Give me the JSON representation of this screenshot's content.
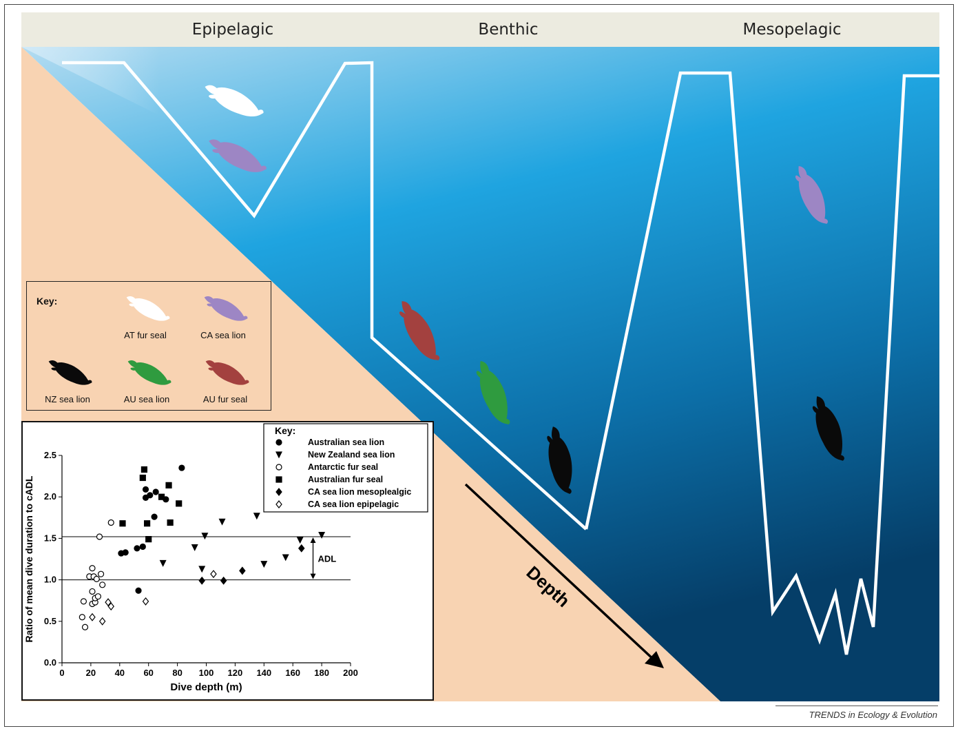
{
  "zones": {
    "epipelagic": "Epipelagic",
    "benthic": "Benthic",
    "mesopelagic": "Mesopelagic"
  },
  "depth_label": "Depth",
  "colors": {
    "header_band": "#ecebe0",
    "land": "#f8d3b2",
    "water_top": "#a9d7f0",
    "water_mid": "#1a9ddc",
    "water_deep": "#07426e",
    "dive_path": "#ffffff",
    "at_fur_seal": "#ffffff",
    "ca_sea_lion": "#9d86c4",
    "nz_sea_lion": "#0a0a0a",
    "au_sea_lion": "#2f9b3f",
    "au_fur_seal": "#a3413f"
  },
  "animal_key": {
    "title": "Key:",
    "items": [
      {
        "label": "AT fur seal",
        "icon": "seal-silhouette-icon"
      },
      {
        "label": "CA sea lion",
        "icon": "sea-lion-silhouette-icon"
      },
      {
        "label": "NZ sea lion",
        "icon": "sea-lion-silhouette-icon"
      },
      {
        "label": "AU sea lion",
        "icon": "sea-lion-silhouette-icon"
      },
      {
        "label": "AU fur seal",
        "icon": "seal-silhouette-icon"
      }
    ]
  },
  "chart_data": {
    "type": "scatter",
    "xlabel": "Dive depth (m)",
    "ylabel": "Ratio of mean dive duration to cADL",
    "xlim": [
      0,
      200
    ],
    "ylim": [
      0,
      2.5
    ],
    "xticks": [
      "0",
      "20",
      "40",
      "60",
      "80",
      "100",
      "120",
      "140",
      "160",
      "180",
      "200"
    ],
    "yticks": [
      "0.0",
      "0.5",
      "1.0",
      "1.5",
      "2.0",
      "2.5"
    ],
    "reference_lines": [
      1.0,
      1.52
    ],
    "adl_label": "ADL",
    "legend_title": "Key:",
    "legend_position": "top-right",
    "series": [
      {
        "name": "Australian sea lion",
        "marker": "circle-filled",
        "points": [
          [
            41,
            1.32
          ],
          [
            44,
            1.33
          ],
          [
            52,
            1.38
          ],
          [
            56,
            1.4
          ],
          [
            53,
            0.87
          ],
          [
            58,
            2.09
          ],
          [
            58,
            1.99
          ],
          [
            61,
            2.02
          ],
          [
            64,
            1.76
          ],
          [
            65,
            2.06
          ],
          [
            72,
            1.97
          ],
          [
            83,
            2.35
          ]
        ]
      },
      {
        "name": "New Zealand sea lion",
        "marker": "triangle-down-filled",
        "points": [
          [
            70,
            1.2
          ],
          [
            92,
            1.39
          ],
          [
            97,
            1.13
          ],
          [
            99,
            1.53
          ],
          [
            111,
            1.7
          ],
          [
            135,
            1.77
          ],
          [
            140,
            1.19
          ],
          [
            155,
            1.27
          ],
          [
            165,
            1.48
          ],
          [
            180,
            1.54
          ]
        ]
      },
      {
        "name": "Antarctic fur seal",
        "marker": "circle-open",
        "points": [
          [
            14,
            0.55
          ],
          [
            16,
            0.43
          ],
          [
            15,
            0.74
          ],
          [
            19,
            1.04
          ],
          [
            21,
            1.14
          ],
          [
            22,
            1.04
          ],
          [
            21,
            0.71
          ],
          [
            21,
            0.86
          ],
          [
            23,
            0.73
          ],
          [
            23,
            0.78
          ],
          [
            24,
            1.01
          ],
          [
            25,
            0.8
          ],
          [
            27,
            1.07
          ],
          [
            28,
            0.94
          ],
          [
            26,
            1.52
          ],
          [
            34,
            1.69
          ]
        ]
      },
      {
        "name": "Australian fur seal",
        "marker": "square-filled",
        "points": [
          [
            42,
            1.68
          ],
          [
            56,
            2.23
          ],
          [
            57,
            2.33
          ],
          [
            59,
            1.68
          ],
          [
            60,
            1.49
          ],
          [
            69,
            2.0
          ],
          [
            74,
            2.14
          ],
          [
            75,
            1.69
          ],
          [
            81,
            1.92
          ]
        ]
      },
      {
        "name": "CA sea lion mesoplealgic",
        "marker": "diamond-filled",
        "points": [
          [
            97,
            0.99
          ],
          [
            112,
            0.99
          ],
          [
            125,
            1.11
          ],
          [
            166,
            1.38
          ]
        ]
      },
      {
        "name": "CA sea lion epipelagic",
        "marker": "diamond-open",
        "points": [
          [
            21,
            0.55
          ],
          [
            28,
            0.5
          ],
          [
            32,
            0.73
          ],
          [
            34,
            0.68
          ],
          [
            58,
            0.74
          ],
          [
            105,
            1.07
          ]
        ]
      }
    ]
  },
  "footer": "TRENDS in Ecology & Evolution"
}
